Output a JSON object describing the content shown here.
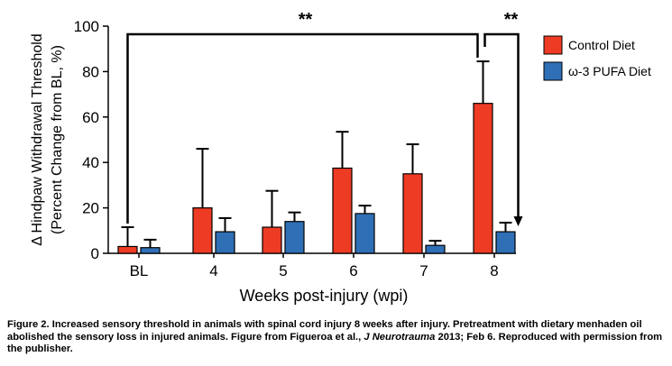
{
  "chart_data": {
    "type": "bar",
    "categories": [
      "BL",
      "4",
      "5",
      "6",
      "7",
      "8"
    ],
    "series": [
      {
        "name": "Control Diet",
        "color": "#ee3b24",
        "values": [
          3,
          20,
          11.5,
          37.5,
          35,
          66
        ],
        "errors": [
          8.5,
          26,
          16,
          16,
          13,
          18.5
        ]
      },
      {
        "name": "ω-3 PUFA Diet",
        "color": "#2f6fb6",
        "values": [
          2.5,
          9.5,
          14,
          17.5,
          3.5,
          9.5
        ],
        "errors": [
          3.5,
          6,
          4,
          3.5,
          2,
          4
        ]
      }
    ],
    "ylim": [
      0,
      100
    ],
    "yticks": [
      "0",
      "20",
      "40",
      "60",
      "80",
      "100"
    ],
    "ylabel_line1": "Δ Hindpaw Withdrawal Threshold",
    "ylabel_line2": "(Percent Change from BL, %)",
    "xlabel": "Weeks post-injury (wpi)",
    "legend_position": "top-right",
    "annotations": [
      {
        "label": "**",
        "from_category": "BL",
        "to_category": "8",
        "series": "Control Diet"
      },
      {
        "label": "**",
        "from_category": "8",
        "to_category": "8",
        "series": "Control Diet vs ω-3 PUFA Diet"
      }
    ]
  },
  "caption": {
    "text1": "Figure 2. Increased sensory threshold in animals with spinal cord injury 8 weeks after injury. Pretreatment with dietary menhaden oil abolished the sensory loss in injured animals. Figure from Figueroa et al., ",
    "journal": "J Neurotrauma",
    "text2": " 2013; Feb 6. Reproduced with permission from the publisher."
  }
}
